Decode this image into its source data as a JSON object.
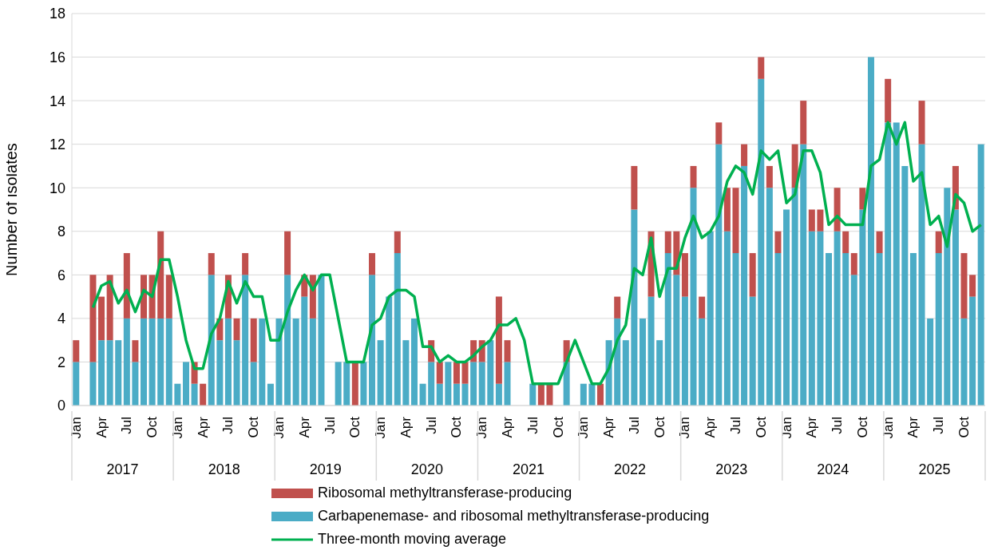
{
  "chart_data": {
    "type": "bar",
    "stacked": true,
    "ylabel": "Number of isolates",
    "ylim": [
      0,
      18
    ],
    "yticks": [
      0,
      2,
      4,
      6,
      8,
      10,
      12,
      14,
      16,
      18
    ],
    "grid": "y",
    "legend": "bottom",
    "categories": [
      "Jan",
      null,
      null,
      "Apr",
      null,
      null,
      "Jul",
      null,
      null,
      "Oct",
      null,
      null,
      "Jan",
      null,
      null,
      "Apr",
      null,
      null,
      "Jul",
      null,
      null,
      "Oct",
      null,
      null,
      "Jan",
      null,
      null,
      "Apr",
      null,
      null,
      "Jul",
      null,
      null,
      "Oct",
      null,
      null,
      "Jan",
      null,
      null,
      "Apr",
      null,
      null,
      "Jul",
      null,
      null,
      "Oct",
      null,
      null,
      "Jan",
      null,
      null,
      "Apr",
      null,
      null,
      "Jul",
      null,
      null,
      "Oct",
      null,
      null,
      "Jan",
      null,
      null,
      "Apr",
      null,
      null,
      "Jul",
      null,
      null,
      "Oct",
      null,
      null,
      "Jan",
      null,
      null,
      "Apr",
      null,
      null,
      "Jul",
      null,
      null,
      "Oct",
      null,
      null,
      "Jan",
      null,
      null,
      "Apr",
      null,
      null,
      "Jul",
      null,
      null,
      "Oct",
      null,
      null,
      "Jan",
      null,
      null,
      "Apr",
      null,
      null,
      "Jul",
      null,
      null,
      "Oct",
      null,
      null
    ],
    "annotations": [
      "2017",
      "2018",
      "2019",
      "2020",
      "2021",
      "2022",
      "2023",
      "2024",
      "2025"
    ],
    "series": [
      {
        "name": "Carbapenemase- and ribosomal methyltransferase-producing",
        "color": "#4bacc6",
        "values": [
          2,
          0,
          2,
          3,
          3,
          3,
          4,
          2,
          4,
          4,
          4,
          4,
          1,
          2,
          1,
          0,
          6,
          3,
          4,
          3,
          6,
          2,
          4,
          1,
          4,
          6,
          4,
          5,
          4,
          6,
          0,
          2,
          2,
          0,
          2,
          6,
          3,
          5,
          7,
          3,
          4,
          1,
          2,
          1,
          2,
          1,
          1,
          2,
          2,
          3,
          1,
          2,
          0,
          0,
          1,
          0,
          0,
          0,
          2,
          0,
          1,
          1,
          0,
          3,
          4,
          3,
          9,
          4,
          5,
          3,
          7,
          6,
          5,
          10,
          4,
          8,
          12,
          8,
          7,
          11,
          5,
          15,
          10,
          7,
          9,
          10,
          12,
          8,
          8,
          7,
          8,
          7,
          6,
          9,
          16,
          7,
          13,
          13,
          11,
          7,
          12,
          4,
          7,
          10,
          9,
          4,
          5,
          12
        ]
      },
      {
        "name": "Ribosomal methyltransferase-producing",
        "color": "#c0504d",
        "values": [
          1,
          0,
          4,
          2,
          3,
          0,
          3,
          1,
          2,
          2,
          4,
          2,
          0,
          0,
          1,
          1,
          1,
          1,
          2,
          1,
          1,
          2,
          0,
          0,
          0,
          2,
          0,
          1,
          2,
          0,
          0,
          0,
          0,
          2,
          0,
          1,
          0,
          0,
          1,
          0,
          0,
          0,
          1,
          1,
          0,
          1,
          1,
          1,
          1,
          0,
          4,
          1,
          0,
          0,
          0,
          1,
          1,
          0,
          1,
          0,
          0,
          0,
          1,
          0,
          1,
          0,
          2,
          0,
          3,
          0,
          1,
          2,
          2,
          1,
          1,
          0,
          1,
          2,
          3,
          1,
          2,
          1,
          1,
          1,
          0,
          2,
          2,
          1,
          1,
          0,
          2,
          1,
          1,
          1,
          0,
          1,
          2,
          0,
          0,
          0,
          2,
          0,
          1,
          0,
          2,
          3,
          1,
          0
        ]
      },
      {
        "name": "Three-month moving average",
        "type": "line",
        "color": "#00b050",
        "values": [
          null,
          null,
          4.5,
          5.5,
          5.7,
          4.7,
          5.3,
          4.3,
          5.3,
          5,
          6.7,
          6.7,
          5,
          3,
          1.7,
          1.7,
          3.3,
          4,
          5.7,
          4.7,
          5.7,
          5,
          5,
          3,
          3,
          4.3,
          5.3,
          6,
          5.3,
          6,
          6,
          4,
          2,
          2,
          2,
          3.7,
          4,
          5,
          5.3,
          5.3,
          5,
          2.7,
          2.7,
          2,
          2.3,
          2,
          2,
          2.3,
          2.7,
          3,
          3.7,
          3.7,
          4,
          3,
          1,
          1,
          1,
          1,
          2,
          3,
          2,
          1,
          1,
          1.7,
          3,
          3.7,
          6.3,
          6,
          7.7,
          5,
          6.3,
          6.3,
          7.7,
          8.7,
          7.7,
          8,
          8.7,
          10.3,
          11,
          10.7,
          9.7,
          11.7,
          11.3,
          11.7,
          9.3,
          9.7,
          11.7,
          11.7,
          10.7,
          8.3,
          8.7,
          8.3,
          8.3,
          8.3,
          11,
          11.3,
          13,
          12,
          13,
          10.3,
          10.7,
          8.3,
          8.7,
          7.3,
          9.7,
          9.3,
          8,
          8.3
        ]
      }
    ]
  }
}
